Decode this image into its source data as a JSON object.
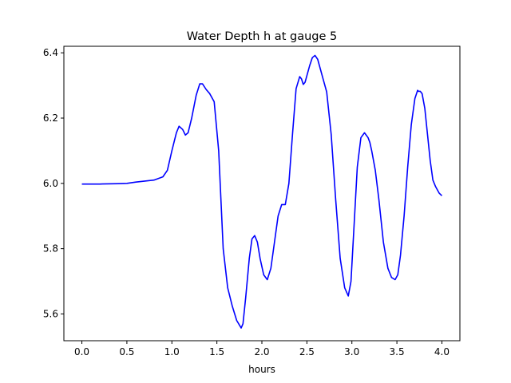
{
  "chart_data": {
    "type": "line",
    "title": "Water Depth h at gauge 5",
    "xlabel": "hours",
    "ylabel": "",
    "xlim": [
      -0.2,
      4.2
    ],
    "ylim": [
      5.518,
      6.42
    ],
    "xticks": [
      0.0,
      0.5,
      1.0,
      1.5,
      2.0,
      2.5,
      3.0,
      3.5,
      4.0
    ],
    "xtick_labels": [
      "0.0",
      "0.5",
      "1.0",
      "1.5",
      "2.0",
      "2.5",
      "3.0",
      "3.5",
      "4.0"
    ],
    "yticks": [
      5.6,
      5.8,
      6.0,
      6.2,
      6.4
    ],
    "ytick_labels": [
      "5.6",
      "5.8",
      "6.0",
      "6.2",
      "6.4"
    ],
    "grid": false,
    "series": [
      {
        "color": "#0000ff",
        "x": [
          0.0,
          0.2,
          0.4,
          0.5,
          0.6,
          0.7,
          0.8,
          0.9,
          0.95,
          1.0,
          1.05,
          1.08,
          1.12,
          1.15,
          1.18,
          1.22,
          1.27,
          1.31,
          1.34,
          1.38,
          1.42,
          1.47,
          1.52,
          1.57,
          1.62,
          1.67,
          1.72,
          1.77,
          1.79,
          1.82,
          1.86,
          1.89,
          1.92,
          1.95,
          1.98,
          2.02,
          2.06,
          2.1,
          2.14,
          2.18,
          2.22,
          2.26,
          2.3,
          2.34,
          2.38,
          2.42,
          2.44,
          2.46,
          2.48,
          2.5,
          2.53,
          2.56,
          2.59,
          2.62,
          2.65,
          2.68,
          2.72,
          2.77,
          2.82,
          2.87,
          2.92,
          2.96,
          2.99,
          3.02,
          3.06,
          3.1,
          3.14,
          3.18,
          3.2,
          3.22,
          3.26,
          3.3,
          3.35,
          3.4,
          3.44,
          3.48,
          3.51,
          3.54,
          3.58,
          3.62,
          3.66,
          3.7,
          3.73,
          3.74,
          3.76,
          3.78,
          3.81,
          3.84,
          3.87,
          3.9,
          3.93,
          3.97,
          4.0
        ],
        "y": [
          5.998,
          5.998,
          5.999,
          6.0,
          6.004,
          6.007,
          6.01,
          6.02,
          6.04,
          6.1,
          6.155,
          6.175,
          6.165,
          6.148,
          6.155,
          6.2,
          6.27,
          6.305,
          6.305,
          6.288,
          6.275,
          6.25,
          6.1,
          5.8,
          5.68,
          5.625,
          5.58,
          5.557,
          5.57,
          5.65,
          5.77,
          5.83,
          5.84,
          5.82,
          5.77,
          5.72,
          5.705,
          5.74,
          5.82,
          5.9,
          5.935,
          5.935,
          6.0,
          6.15,
          6.29,
          6.327,
          6.32,
          6.303,
          6.31,
          6.33,
          6.36,
          6.385,
          6.392,
          6.38,
          6.35,
          6.32,
          6.28,
          6.15,
          5.95,
          5.77,
          5.68,
          5.655,
          5.7,
          5.85,
          6.05,
          6.14,
          6.155,
          6.14,
          6.125,
          6.1,
          6.04,
          5.95,
          5.82,
          5.74,
          5.712,
          5.705,
          5.72,
          5.78,
          5.9,
          6.05,
          6.18,
          6.26,
          6.285,
          6.282,
          6.282,
          6.275,
          6.23,
          6.15,
          6.07,
          6.01,
          5.99,
          5.97,
          5.962
        ]
      }
    ]
  }
}
